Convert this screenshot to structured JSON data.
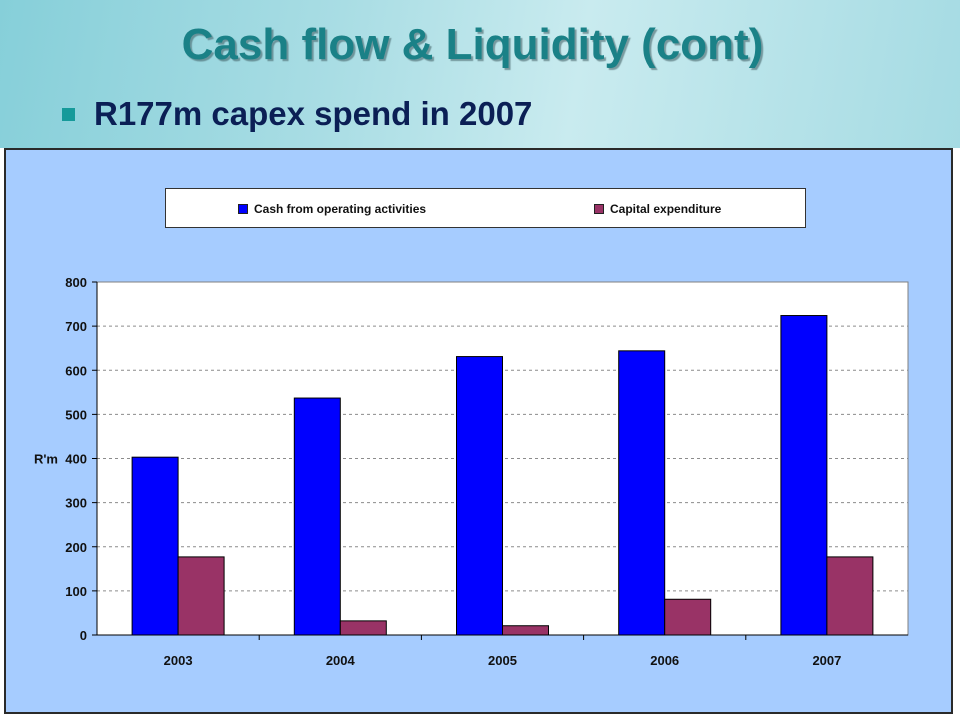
{
  "slide": {
    "title": "Cash flow & Liquidity (cont)",
    "bullet": "R177m capex spend in 2007"
  },
  "colors": {
    "banner": "#a9dde4",
    "title": "#1a8187",
    "chart_background": "#a6ccff",
    "plot_background": "#ffffff",
    "series_cash": "#0000ff",
    "series_capex": "#993366"
  },
  "chart_data": {
    "type": "bar",
    "title": "",
    "xlabel": "",
    "ylabel": "R'm",
    "categories": [
      "2003",
      "2004",
      "2005",
      "2006",
      "2007"
    ],
    "series": [
      {
        "name": "Cash from operating activities",
        "color": "#0000ff",
        "values": [
          403,
          537,
          631,
          644,
          724
        ]
      },
      {
        "name": "Capital expenditure",
        "color": "#993366",
        "values": [
          177,
          32,
          21,
          81,
          177
        ]
      }
    ],
    "ylim": [
      0,
      800
    ],
    "yticks": [
      "0",
      "100",
      "200",
      "300",
      "400",
      "500",
      "600",
      "700",
      "800"
    ],
    "grid": true,
    "legend_position": "top"
  }
}
